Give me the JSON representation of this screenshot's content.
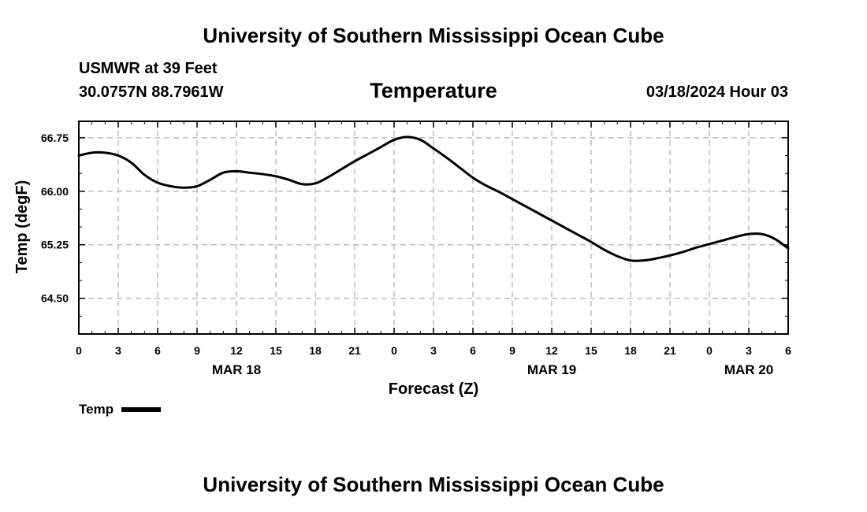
{
  "header": {
    "title": "University of Southern Mississippi Ocean Cube",
    "station": "USMWR at 39 Feet",
    "coords": "30.0757N  88.7961W",
    "plot_title": "Temperature",
    "datetime": "03/18/2024 Hour 03"
  },
  "footer": {
    "title": "University of Southern Mississippi Ocean Cube"
  },
  "legend": {
    "label": "Temp"
  },
  "chart_data": {
    "type": "line",
    "title": "Temperature",
    "xlabel": "Forecast (Z)",
    "ylabel": "Temp (degF)",
    "xlim": [
      0,
      54
    ],
    "ylim": [
      64.0,
      66.98
    ],
    "x_ticks": [
      0,
      3,
      6,
      9,
      12,
      15,
      18,
      21,
      24,
      27,
      30,
      33,
      36,
      39,
      42,
      45,
      48,
      51,
      54
    ],
    "x_tick_labels": [
      "0",
      "3",
      "6",
      "9",
      "12",
      "15",
      "18",
      "21",
      "0",
      "3",
      "6",
      "9",
      "12",
      "15",
      "18",
      "21",
      "0",
      "3",
      "6"
    ],
    "date_labels": [
      {
        "x": 12,
        "label": "MAR 18"
      },
      {
        "x": 36,
        "label": "MAR 19"
      },
      {
        "x": 51,
        "label": "MAR 20"
      }
    ],
    "y_ticks": [
      64.5,
      65.25,
      66.0,
      66.75
    ],
    "y_tick_labels": [
      "64.50",
      "65.25",
      "66.00",
      "66.75"
    ],
    "grid": true,
    "series": [
      {
        "name": "Temp",
        "x": [
          0,
          1,
          2,
          3,
          4,
          5,
          6,
          7,
          8,
          9,
          10,
          11,
          12,
          13,
          14,
          15,
          16,
          17,
          18,
          19,
          20,
          21,
          22,
          23,
          24,
          25,
          26,
          27,
          28,
          29,
          30,
          31,
          32,
          33,
          34,
          35,
          36,
          37,
          38,
          39,
          40,
          41,
          42,
          43,
          44,
          45,
          46,
          47,
          48,
          49,
          50,
          51,
          52,
          53,
          54
        ],
        "values": [
          66.5,
          66.54,
          66.54,
          66.5,
          66.4,
          66.23,
          66.12,
          66.07,
          66.05,
          66.07,
          66.16,
          66.26,
          66.28,
          66.26,
          66.24,
          66.21,
          66.16,
          66.1,
          66.11,
          66.2,
          66.31,
          66.42,
          66.52,
          66.62,
          66.72,
          66.76,
          66.72,
          66.6,
          66.47,
          66.33,
          66.19,
          66.08,
          65.99,
          65.89,
          65.79,
          65.69,
          65.59,
          65.49,
          65.39,
          65.29,
          65.18,
          65.09,
          65.03,
          65.03,
          65.06,
          65.1,
          65.15,
          65.21,
          65.26,
          65.31,
          65.36,
          65.4,
          65.4,
          65.33,
          65.2
        ]
      }
    ]
  }
}
